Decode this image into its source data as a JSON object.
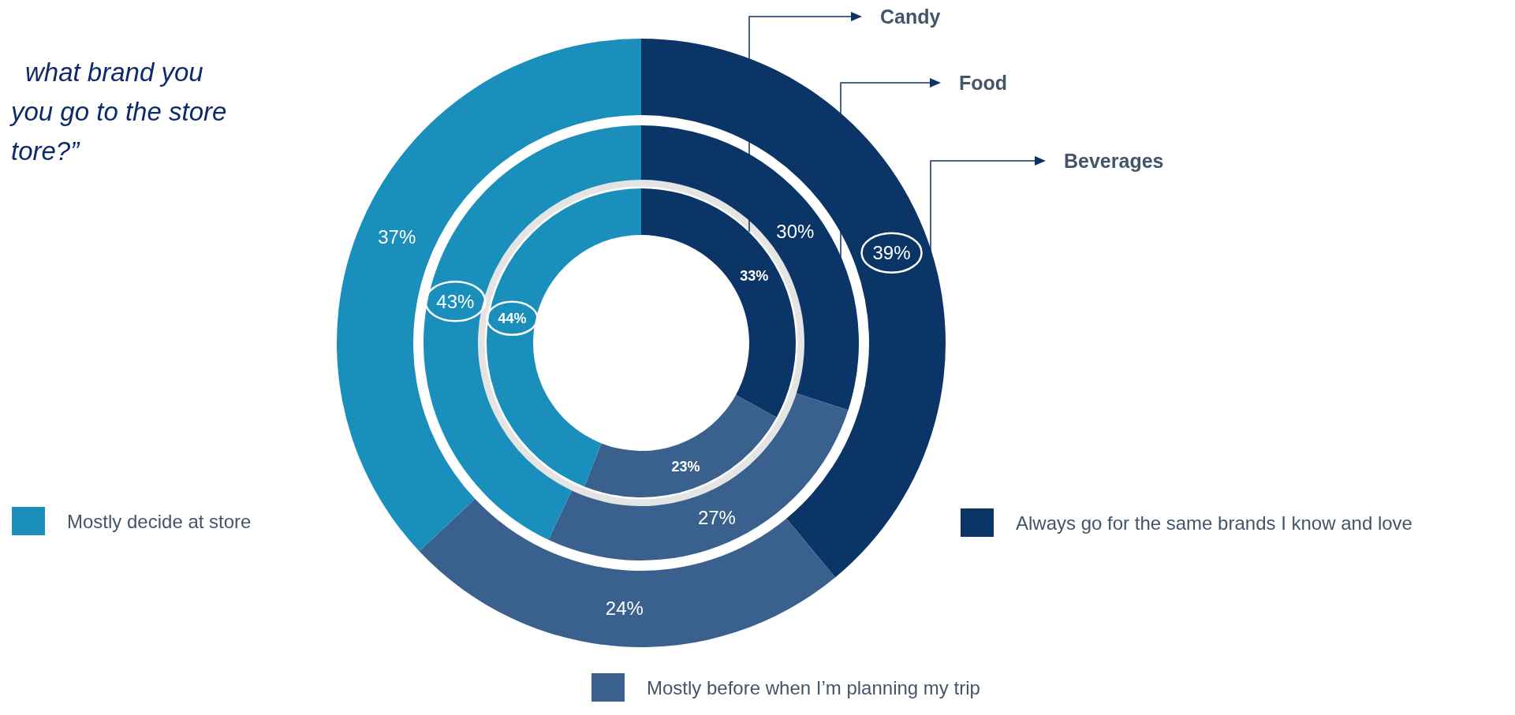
{
  "chart_data": {
    "type": "donut",
    "title": "what brand you\nyou go to the store\ntore?”",
    "categories": [
      "Always go for the same brands I know and love",
      "Mostly before when I’m planning my trip",
      "Mostly decide at store"
    ],
    "colors": [
      "#0b3566",
      "#3a618d",
      "#1a8fbc"
    ],
    "series": [
      {
        "name": "Candy",
        "values": [
          33,
          23,
          44
        ],
        "value_labels": [
          "33%",
          "23%",
          "44%"
        ]
      },
      {
        "name": "Food",
        "values": [
          30,
          27,
          43
        ],
        "value_labels": [
          "30%",
          "27%",
          "43%"
        ]
      },
      {
        "name": "Beverages",
        "values": [
          39,
          24,
          37
        ],
        "value_labels": [
          "39%",
          "24%",
          "37%"
        ]
      }
    ],
    "legend": "bottom"
  }
}
